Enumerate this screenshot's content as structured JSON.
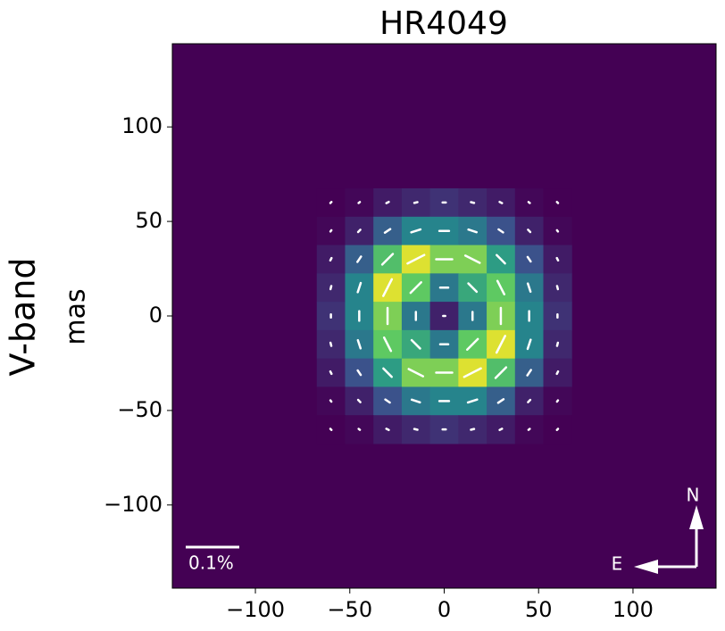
{
  "chart_data": {
    "type": "heatmap",
    "title": "HR4049",
    "panel_label": "V-band",
    "ylabel": "mas",
    "xlim": [
      -144,
      144
    ],
    "ylim": [
      -144,
      144
    ],
    "xticks": [
      {
        "value": -100,
        "label": "−100"
      },
      {
        "value": -50,
        "label": "−50"
      },
      0,
      50,
      100
    ],
    "yticks": [
      {
        "value": -100,
        "label": "−100"
      },
      {
        "value": -50,
        "label": "−50"
      },
      0,
      50,
      100
    ],
    "colormap": "viridis",
    "clim": [
      0,
      1
    ],
    "heatmap": {
      "x": [
        -60,
        -45,
        -30,
        -15,
        0,
        15,
        30,
        45,
        60
      ],
      "y": [
        60,
        45,
        30,
        15,
        0,
        -15,
        -30,
        -45,
        -60
      ],
      "values": [
        [
          0,
          0.02,
          0.08,
          0.12,
          0.15,
          0.12,
          0.08,
          0.02,
          0
        ],
        [
          0.02,
          0.1,
          0.3,
          0.45,
          0.45,
          0.4,
          0.25,
          0.1,
          0.02
        ],
        [
          0.08,
          0.3,
          0.7,
          0.95,
          0.8,
          0.8,
          0.55,
          0.25,
          0.08
        ],
        [
          0.12,
          0.45,
          0.95,
          0.75,
          0.4,
          0.6,
          0.75,
          0.4,
          0.12
        ],
        [
          0.15,
          0.45,
          0.8,
          0.4,
          0.1,
          0.4,
          0.8,
          0.45,
          0.15
        ],
        [
          0.12,
          0.4,
          0.75,
          0.6,
          0.4,
          0.75,
          0.95,
          0.45,
          0.12
        ],
        [
          0.08,
          0.25,
          0.55,
          0.8,
          0.8,
          0.95,
          0.7,
          0.3,
          0.08
        ],
        [
          0.02,
          0.1,
          0.25,
          0.4,
          0.45,
          0.45,
          0.3,
          0.1,
          0.02
        ],
        [
          0,
          0.02,
          0.08,
          0.12,
          0.15,
          0.12,
          0.08,
          0.02,
          0
        ]
      ]
    },
    "vectors": {
      "color": "#ffffff",
      "p": [
        [
          0.003,
          0.003,
          0.005,
          0.006,
          0.006,
          0.006,
          0.005,
          0.003,
          0.003
        ],
        [
          0.003,
          0.006,
          0.012,
          0.018,
          0.018,
          0.016,
          0.01,
          0.006,
          0.003
        ],
        [
          0.005,
          0.012,
          0.028,
          0.035,
          0.03,
          0.03,
          0.022,
          0.01,
          0.005
        ],
        [
          0.006,
          0.018,
          0.035,
          0.028,
          0.015,
          0.022,
          0.028,
          0.016,
          0.006
        ],
        [
          0.006,
          0.018,
          0.03,
          0.015,
          0.004,
          0.015,
          0.03,
          0.018,
          0.006
        ],
        [
          0.006,
          0.016,
          0.028,
          0.022,
          0.015,
          0.028,
          0.035,
          0.018,
          0.006
        ],
        [
          0.005,
          0.01,
          0.022,
          0.03,
          0.03,
          0.035,
          0.028,
          0.012,
          0.005
        ],
        [
          0.003,
          0.006,
          0.01,
          0.016,
          0.018,
          0.018,
          0.012,
          0.006,
          0.003
        ],
        [
          0.003,
          0.003,
          0.005,
          0.006,
          0.006,
          0.006,
          0.005,
          0.003,
          0.003
        ]
      ],
      "angle": [
        [
          45,
          37,
          27,
          14,
          0,
          166,
          153,
          143,
          135
        ],
        [
          53,
          45,
          34,
          18,
          0,
          162,
          146,
          135,
          127
        ],
        [
          63,
          56,
          45,
          27,
          0,
          153,
          135,
          124,
          117
        ],
        [
          76,
          72,
          63,
          45,
          0,
          135,
          117,
          108,
          104
        ],
        [
          90,
          90,
          90,
          90,
          0,
          90,
          90,
          90,
          90
        ],
        [
          104,
          108,
          117,
          135,
          0,
          45,
          63,
          72,
          76
        ],
        [
          117,
          124,
          135,
          153,
          0,
          27,
          45,
          56,
          63
        ],
        [
          127,
          135,
          146,
          162,
          0,
          18,
          34,
          45,
          53
        ],
        [
          135,
          143,
          153,
          166,
          0,
          14,
          27,
          37,
          45
        ]
      ]
    },
    "scale_bar": {
      "value": 0.1,
      "label": "0.1%"
    },
    "compass": {
      "north": "N",
      "east": "E"
    }
  }
}
